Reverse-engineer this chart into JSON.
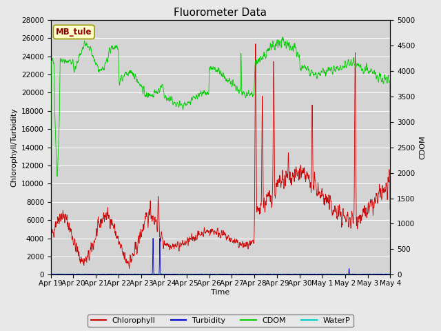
{
  "title": "Fluorometer Data",
  "xlabel": "Time",
  "ylabel_left": "Chlorophyll/Turbidity",
  "ylabel_right": "CDOM",
  "ylim_left": [
    0,
    28000
  ],
  "ylim_right": [
    0,
    5000
  ],
  "yticks_left": [
    0,
    2000,
    4000,
    6000,
    8000,
    10000,
    12000,
    14000,
    16000,
    18000,
    20000,
    22000,
    24000,
    26000,
    28000
  ],
  "yticks_right": [
    0,
    500,
    1000,
    1500,
    2000,
    2500,
    3000,
    3500,
    4000,
    4500,
    5000
  ],
  "station_label": "MB_tule",
  "bg_color": "#e8e8e8",
  "plot_bg_color": "#d4d4d4",
  "grid_color": "#ffffff",
  "legend_entries": [
    "Chlorophyll",
    "Turbidity",
    "CDOM",
    "WaterP"
  ],
  "legend_colors": [
    "#cc0000",
    "#0000cc",
    "#00cc00",
    "#00cccc"
  ],
  "title_fontsize": 11,
  "axis_label_fontsize": 8,
  "tick_fontsize": 7.5
}
